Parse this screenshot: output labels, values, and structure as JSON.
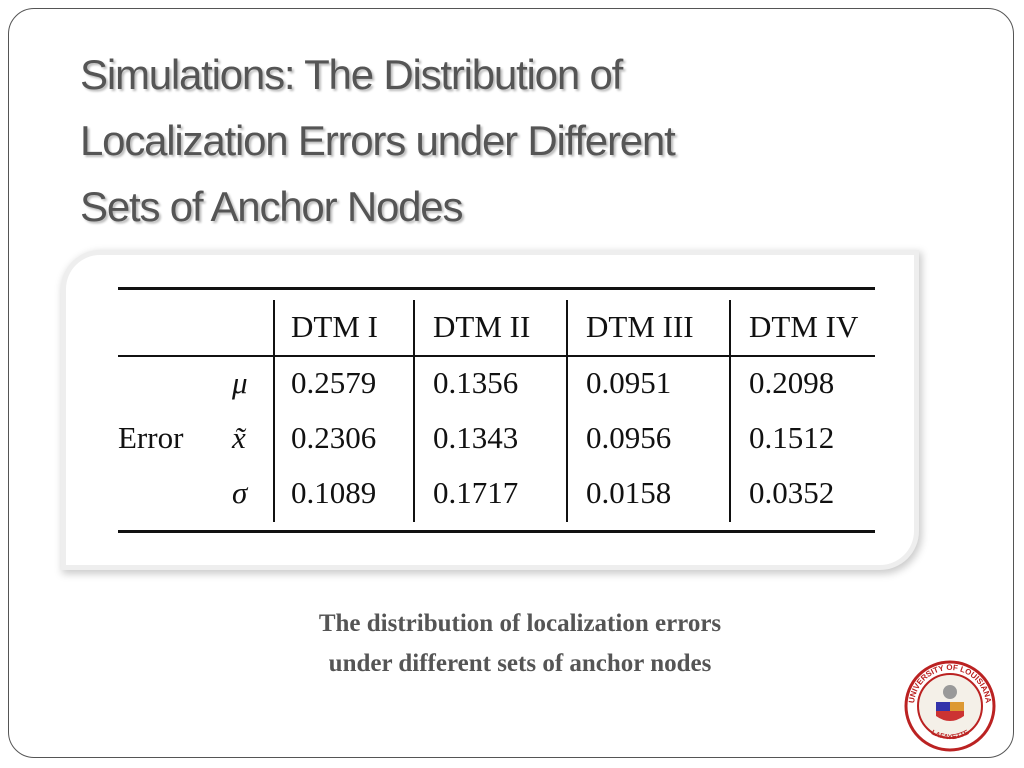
{
  "title_lines": [
    "Simulations: The Distribution of",
    "Localization Errors under Different",
    "Sets of Anchor Nodes"
  ],
  "table": {
    "columns": [
      "DTM I",
      "DTM II",
      "DTM III",
      "DTM IV"
    ],
    "row_group": "Error",
    "rows": [
      {
        "symbol": "μ",
        "values": [
          "0.2579",
          "0.1356",
          "0.0951",
          "0.2098"
        ]
      },
      {
        "symbol": "x̃",
        "values": [
          "0.2306",
          "0.1343",
          "0.0956",
          "0.1512"
        ]
      },
      {
        "symbol": "σ",
        "values": [
          "0.1089",
          "0.1717",
          "0.0158",
          "0.0352"
        ]
      }
    ]
  },
  "caption_lines": [
    "The distribution of localization errors",
    "under different sets of anchor nodes"
  ],
  "logo": {
    "top_text": "UNIVERSITY OF LOUISIANA",
    "bottom_text": "LAFAYETTE"
  }
}
